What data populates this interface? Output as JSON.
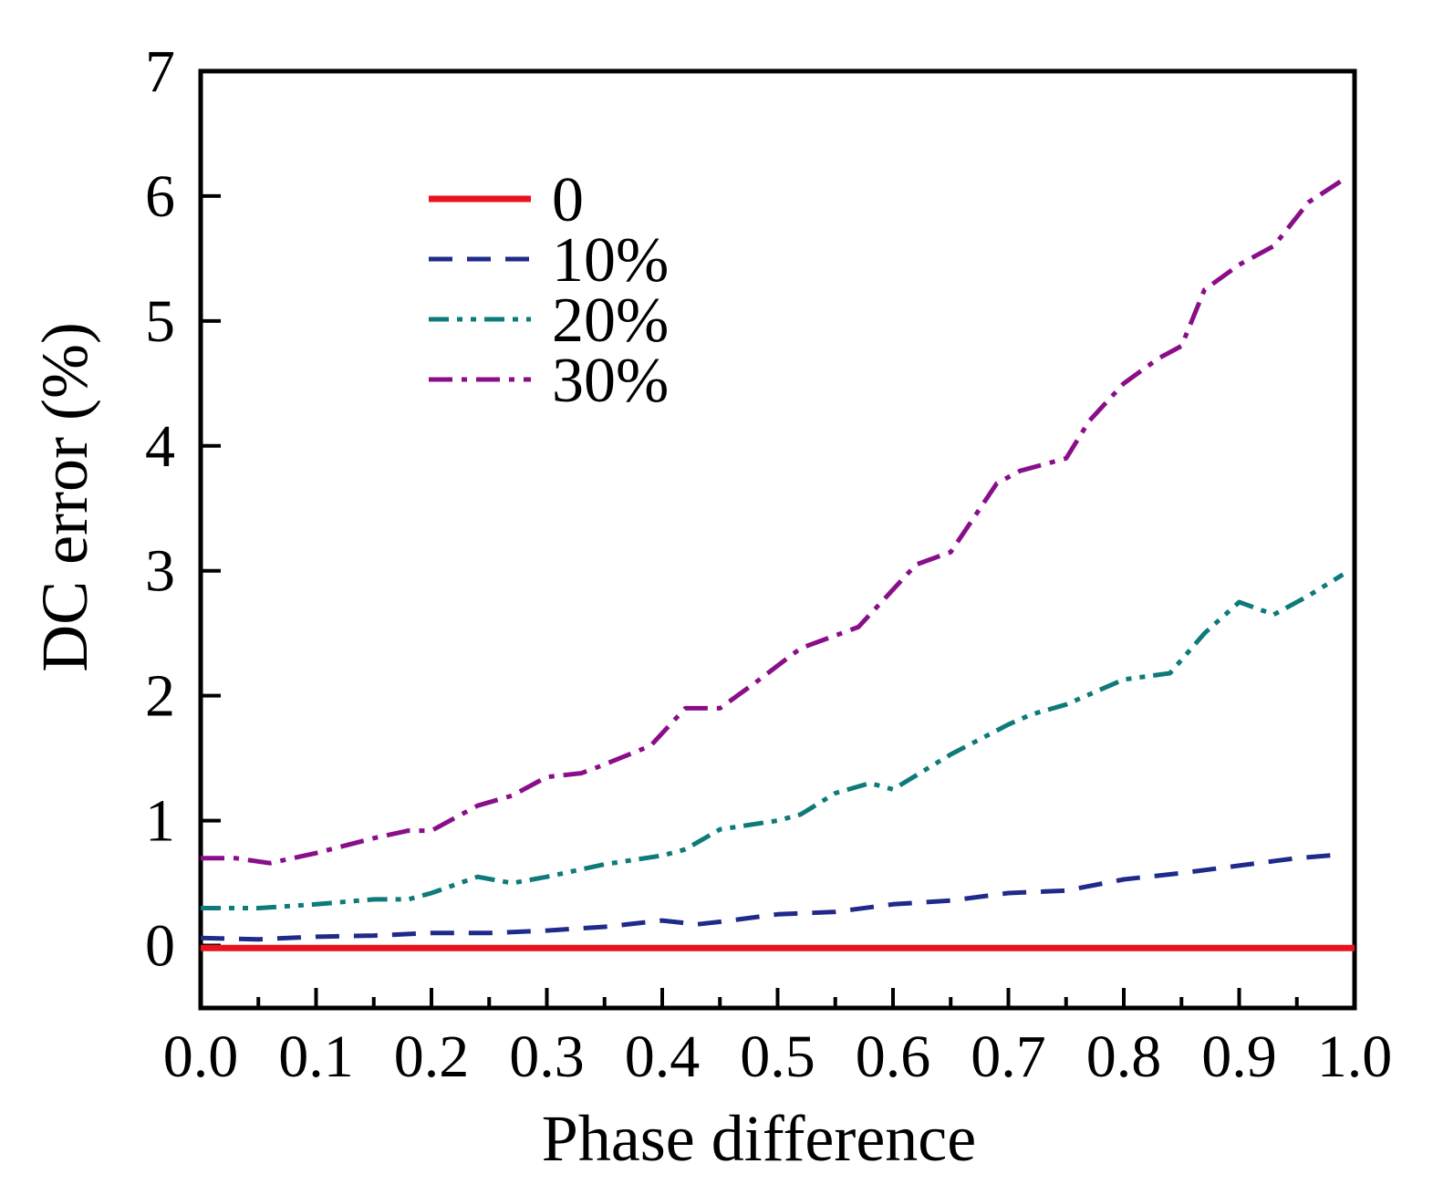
{
  "chart_data": {
    "type": "line",
    "title": "",
    "xlabel": "Phase difference",
    "ylabel": "DC error (%)",
    "xlim": [
      0.0,
      1.0
    ],
    "ylim": [
      -0.5,
      7
    ],
    "xticks": [
      0.0,
      0.1,
      0.2,
      0.3,
      0.4,
      0.5,
      0.6,
      0.7,
      0.8,
      0.9,
      1.0
    ],
    "xtick_labels": [
      "0.0",
      "0.1",
      "0.2",
      "0.3",
      "0.4",
      "0.5",
      "0.6",
      "0.7",
      "0.8",
      "0.9",
      "1.0"
    ],
    "yticks": [
      0,
      1,
      2,
      3,
      4,
      5,
      6,
      7
    ],
    "ytick_labels": [
      "0",
      "1",
      "2",
      "3",
      "4",
      "5",
      "6",
      "7"
    ],
    "legend_position": "upper-left",
    "grid": false,
    "series": [
      {
        "name": "0",
        "color": "#e8131d",
        "style": "solid",
        "x": [
          0.0,
          1.0
        ],
        "y": [
          -0.02,
          -0.02
        ]
      },
      {
        "name": "10%",
        "color": "#1f2a8a",
        "style": "dash",
        "x": [
          0.0,
          0.05,
          0.1,
          0.15,
          0.2,
          0.25,
          0.3,
          0.35,
          0.4,
          0.43,
          0.45,
          0.5,
          0.55,
          0.6,
          0.65,
          0.7,
          0.75,
          0.8,
          0.85,
          0.9,
          0.95,
          0.99
        ],
        "y": [
          0.06,
          0.05,
          0.07,
          0.08,
          0.1,
          0.1,
          0.12,
          0.15,
          0.2,
          0.17,
          0.19,
          0.25,
          0.27,
          0.33,
          0.36,
          0.42,
          0.44,
          0.53,
          0.58,
          0.64,
          0.7,
          0.73
        ]
      },
      {
        "name": "20%",
        "color": "#0e7a7a",
        "style": "dash-dot-dot",
        "x": [
          0.0,
          0.05,
          0.1,
          0.15,
          0.18,
          0.2,
          0.24,
          0.27,
          0.3,
          0.35,
          0.4,
          0.42,
          0.45,
          0.5,
          0.52,
          0.55,
          0.58,
          0.6,
          0.65,
          0.7,
          0.72,
          0.75,
          0.8,
          0.84,
          0.87,
          0.9,
          0.93,
          0.96,
          0.99
        ],
        "y": [
          0.3,
          0.3,
          0.33,
          0.37,
          0.37,
          0.42,
          0.55,
          0.5,
          0.55,
          0.65,
          0.72,
          0.77,
          0.93,
          1.0,
          1.05,
          1.22,
          1.3,
          1.25,
          1.53,
          1.77,
          1.85,
          1.93,
          2.13,
          2.18,
          2.5,
          2.75,
          2.65,
          2.8,
          2.97
        ]
      },
      {
        "name": "30%",
        "color": "#8a0d8a",
        "style": "dash-dot",
        "x": [
          0.0,
          0.03,
          0.06,
          0.1,
          0.15,
          0.18,
          0.2,
          0.24,
          0.27,
          0.3,
          0.33,
          0.35,
          0.39,
          0.42,
          0.45,
          0.48,
          0.52,
          0.57,
          0.6,
          0.62,
          0.65,
          0.69,
          0.71,
          0.75,
          0.77,
          0.8,
          0.83,
          0.85,
          0.87,
          0.9,
          0.93,
          0.96,
          0.99
        ],
        "y": [
          0.7,
          0.7,
          0.66,
          0.74,
          0.86,
          0.92,
          0.92,
          1.12,
          1.2,
          1.35,
          1.38,
          1.45,
          1.6,
          1.9,
          1.9,
          2.1,
          2.38,
          2.55,
          2.85,
          3.05,
          3.15,
          3.7,
          3.8,
          3.9,
          4.2,
          4.5,
          4.7,
          4.8,
          5.25,
          5.45,
          5.6,
          5.95,
          6.13
        ]
      }
    ]
  }
}
